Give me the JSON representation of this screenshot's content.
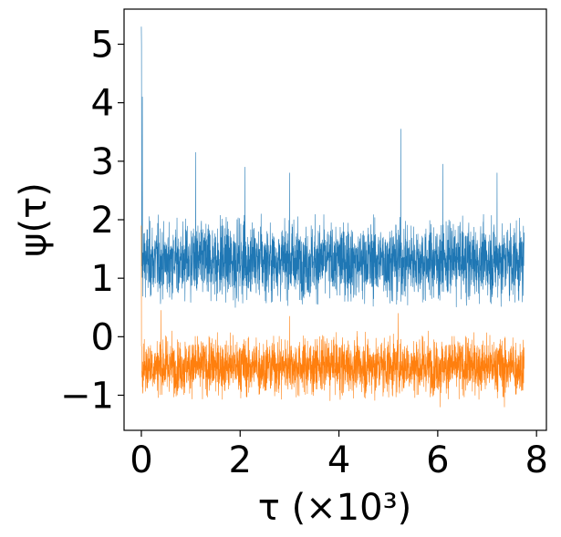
{
  "chart_data": {
    "type": "line",
    "xlabel": "τ (×10³)",
    "ylabel": "ψ(τ)",
    "xlim": [
      -0.35,
      8.2
    ],
    "ylim": [
      -1.6,
      5.6
    ],
    "x_ticks": [
      {
        "value": 0,
        "label": "0"
      },
      {
        "value": 2,
        "label": "2"
      },
      {
        "value": 4,
        "label": "4"
      },
      {
        "value": 6,
        "label": "6"
      },
      {
        "value": 8,
        "label": "8"
      }
    ],
    "y_ticks": [
      {
        "value": -1,
        "label": "−1"
      },
      {
        "value": 0,
        "label": "0"
      },
      {
        "value": 1,
        "label": "1"
      },
      {
        "value": 2,
        "label": "2"
      },
      {
        "value": 3,
        "label": "3"
      },
      {
        "value": 4,
        "label": "4"
      },
      {
        "value": 5,
        "label": "5"
      }
    ],
    "grid": false,
    "legend": "none",
    "series": [
      {
        "color": "#1f77b4",
        "x_range": [
          0,
          7.75
        ],
        "initial_value": 5.3,
        "mean": 1.3,
        "typical_min": 0.5,
        "typical_max": 2.1,
        "spikes": [
          {
            "x": 0.0,
            "y": 5.0
          },
          {
            "x": 0.02,
            "y": 4.1
          },
          {
            "x": 1.1,
            "y": 3.15
          },
          {
            "x": 2.1,
            "y": 2.9
          },
          {
            "x": 3.0,
            "y": 2.8
          },
          {
            "x": 5.25,
            "y": 3.55
          },
          {
            "x": 6.1,
            "y": 2.95
          },
          {
            "x": 7.2,
            "y": 2.8
          }
        ]
      },
      {
        "color": "#ff7f0e",
        "x_range": [
          0,
          7.75
        ],
        "initial_value": 1.9,
        "mean": -0.55,
        "typical_min": -1.1,
        "typical_max": 0.1,
        "spikes": [
          {
            "x": 0.4,
            "y": 0.45
          },
          {
            "x": 3.0,
            "y": 0.35
          },
          {
            "x": 5.2,
            "y": 0.4
          },
          {
            "x": 6.05,
            "y": -1.2
          },
          {
            "x": 7.35,
            "y": -1.2
          }
        ]
      }
    ]
  }
}
